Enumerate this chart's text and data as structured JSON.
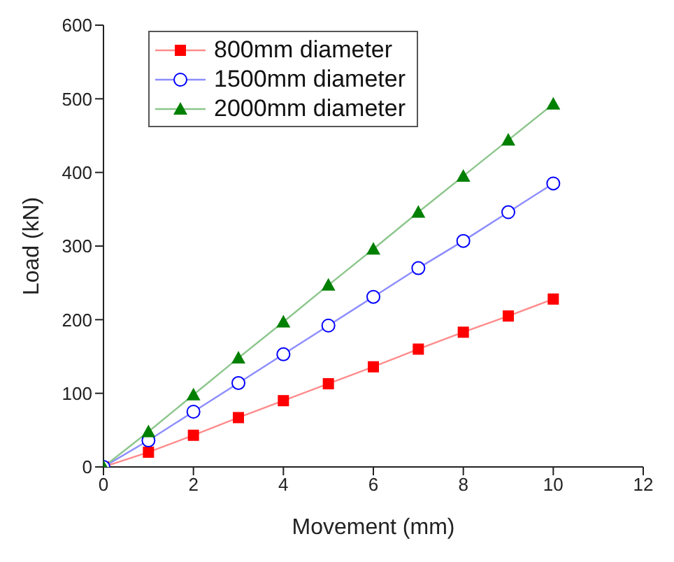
{
  "chart_data": {
    "type": "line",
    "xlabel": "Movement (mm)",
    "ylabel": "Load (kN)",
    "x": [
      0,
      1,
      2,
      3,
      4,
      5,
      6,
      7,
      8,
      9,
      10
    ],
    "xlim": [
      0,
      12
    ],
    "xticks": [
      0,
      2,
      4,
      6,
      8,
      10,
      12
    ],
    "ylim": [
      0,
      600
    ],
    "yticks": [
      0,
      100,
      200,
      300,
      400,
      500,
      600
    ],
    "grid": false,
    "legend": "top left",
    "series": [
      {
        "name": "800mm diameter",
        "color": "#ff0000",
        "marker": "square",
        "values": [
          0,
          20,
          43,
          67,
          90,
          113,
          136,
          160,
          183,
          205,
          228
        ]
      },
      {
        "name": "1500mm diameter",
        "color": "#0000ff",
        "marker": "circle",
        "values": [
          0,
          36,
          75,
          114,
          153,
          192,
          231,
          270,
          307,
          346,
          385
        ]
      },
      {
        "name": "2000mm diameter",
        "color": "#008000",
        "marker": "triangle",
        "values": [
          0,
          48,
          98,
          148,
          197,
          247,
          296,
          346,
          395,
          444,
          493
        ]
      }
    ]
  }
}
